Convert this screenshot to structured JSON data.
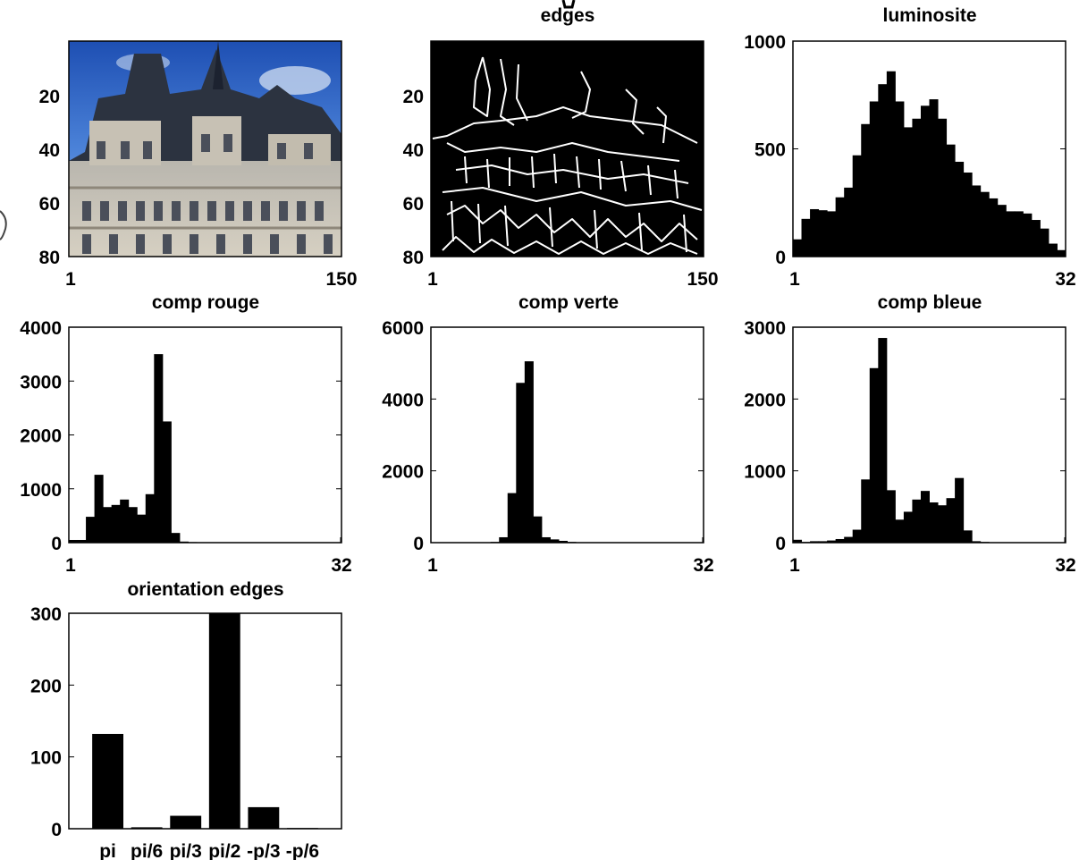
{
  "chart_data": [
    {
      "type": "image",
      "title": "",
      "xticks": [
        "1",
        "150"
      ],
      "yticks": [
        "20",
        "40",
        "60",
        "80"
      ],
      "image": "photo of a building facade under blue sky"
    },
    {
      "type": "image",
      "title": "edges",
      "xticks": [
        "1",
        "150"
      ],
      "yticks": [
        "20",
        "40",
        "60",
        "80"
      ],
      "image": "edge map (white lines on black)"
    },
    {
      "type": "bar",
      "title": "luminosite",
      "xticks": [
        "1",
        "32"
      ],
      "yticks": [
        "0",
        "500",
        "1000"
      ],
      "ylim": [
        0,
        1000
      ],
      "values": [
        80,
        175,
        220,
        215,
        210,
        275,
        320,
        470,
        615,
        720,
        800,
        860,
        720,
        600,
        640,
        700,
        730,
        640,
        520,
        440,
        390,
        330,
        300,
        270,
        240,
        210,
        210,
        200,
        170,
        130,
        60,
        30
      ]
    },
    {
      "type": "bar",
      "title": "comp rouge",
      "xticks": [
        "1",
        "32"
      ],
      "yticks": [
        "0",
        "1000",
        "2000",
        "3000",
        "4000"
      ],
      "ylim": [
        0,
        4000
      ],
      "values": [
        50,
        50,
        480,
        1260,
        660,
        700,
        800,
        660,
        520,
        900,
        3500,
        2250,
        180,
        20,
        10,
        0,
        0,
        0,
        0,
        0,
        0,
        0,
        0,
        0,
        0,
        0,
        0,
        0,
        0,
        0,
        0,
        0
      ]
    },
    {
      "type": "bar",
      "title": "comp verte",
      "xticks": [
        "1",
        "32"
      ],
      "yticks": [
        "0",
        "2000",
        "4000",
        "6000"
      ],
      "ylim": [
        0,
        6000
      ],
      "values": [
        0,
        0,
        0,
        0,
        0,
        0,
        0,
        20,
        150,
        1380,
        4450,
        5050,
        730,
        150,
        90,
        50,
        20,
        10,
        0,
        0,
        0,
        0,
        0,
        0,
        0,
        0,
        0,
        0,
        0,
        0,
        0,
        0
      ]
    },
    {
      "type": "bar",
      "title": "comp bleue",
      "xticks": [
        "1",
        "32"
      ],
      "yticks": [
        "0",
        "1000",
        "2000",
        "3000"
      ],
      "ylim": [
        0,
        3000
      ],
      "values": [
        40,
        10,
        20,
        20,
        30,
        50,
        80,
        180,
        880,
        2430,
        2850,
        730,
        320,
        430,
        600,
        720,
        560,
        520,
        620,
        900,
        170,
        20,
        10,
        0,
        0,
        0,
        0,
        0,
        0,
        0,
        0,
        0
      ]
    },
    {
      "type": "bar",
      "title": "orientation edges",
      "categories": [
        "pi",
        "pi/6",
        "pi/3",
        "pi/2",
        "-p/3",
        "-p/6"
      ],
      "yticks": [
        "0",
        "100",
        "200",
        "300"
      ],
      "ylim": [
        0,
        300
      ],
      "values": [
        132,
        2,
        18,
        300,
        30,
        1
      ]
    }
  ]
}
